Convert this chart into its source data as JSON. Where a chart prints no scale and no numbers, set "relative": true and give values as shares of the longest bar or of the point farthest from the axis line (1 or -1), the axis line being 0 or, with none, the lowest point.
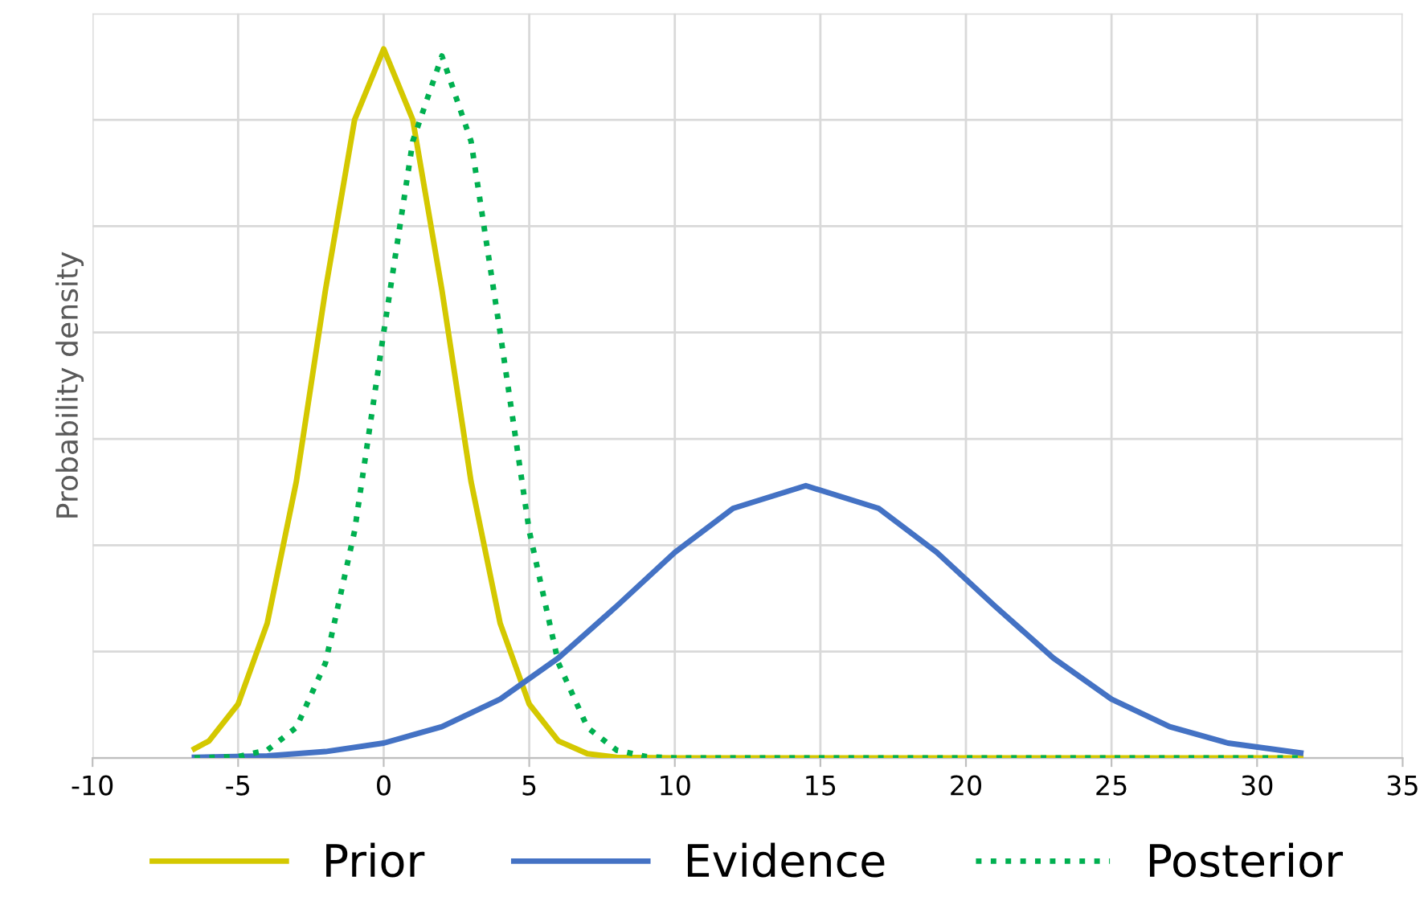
{
  "chart_data": {
    "type": "line",
    "ylabel": "Probability density",
    "relative": true,
    "xlim": [
      -10,
      35
    ],
    "xticks": [
      -10,
      -5,
      0,
      5,
      10,
      15,
      20,
      25,
      30,
      35
    ],
    "grid": true,
    "legend": "bottom",
    "tick_labels": "x",
    "marker": "none",
    "series": [
      {
        "name": "Prior",
        "color": "#d4c800",
        "line_style": "solid",
        "x": [
          -6.5,
          -6,
          -5,
          -4,
          -3,
          -2,
          -1,
          0,
          1,
          2,
          3,
          4,
          5,
          6,
          7,
          8,
          10,
          15,
          20,
          25,
          31.5
        ],
        "values": [
          0.013,
          0.024,
          0.076,
          0.19,
          0.39,
          0.66,
          0.9,
          1,
          0.9,
          0.66,
          0.39,
          0.19,
          0.076,
          0.024,
          0.006,
          0.001,
          0,
          0,
          0,
          0,
          0
        ]
      },
      {
        "name": "Evidence",
        "color": "#4472c4",
        "line_style": "solid",
        "x": [
          -6.5,
          -4,
          -2,
          0,
          2,
          4,
          6,
          8,
          10,
          12,
          14.5,
          17,
          19,
          21,
          23,
          25,
          27,
          29,
          31.5
        ],
        "values": [
          0.001,
          0.003,
          0.009,
          0.021,
          0.044,
          0.083,
          0.141,
          0.214,
          0.29,
          0.352,
          0.384,
          0.352,
          0.29,
          0.214,
          0.141,
          0.083,
          0.044,
          0.021,
          0.007
        ]
      },
      {
        "name": "Posterior",
        "color": "#00b050",
        "line_style": "dotted",
        "x": [
          -6.5,
          -5,
          -4,
          -3,
          -2,
          -1,
          0,
          1,
          2,
          3,
          4,
          5,
          6,
          7,
          8,
          9,
          10,
          15,
          20,
          25,
          31.5
        ],
        "values": [
          0,
          0.002,
          0.011,
          0.043,
          0.134,
          0.32,
          0.6,
          0.87,
          0.99,
          0.87,
          0.6,
          0.32,
          0.134,
          0.043,
          0.011,
          0.002,
          0,
          0,
          0,
          0,
          0
        ]
      }
    ]
  }
}
